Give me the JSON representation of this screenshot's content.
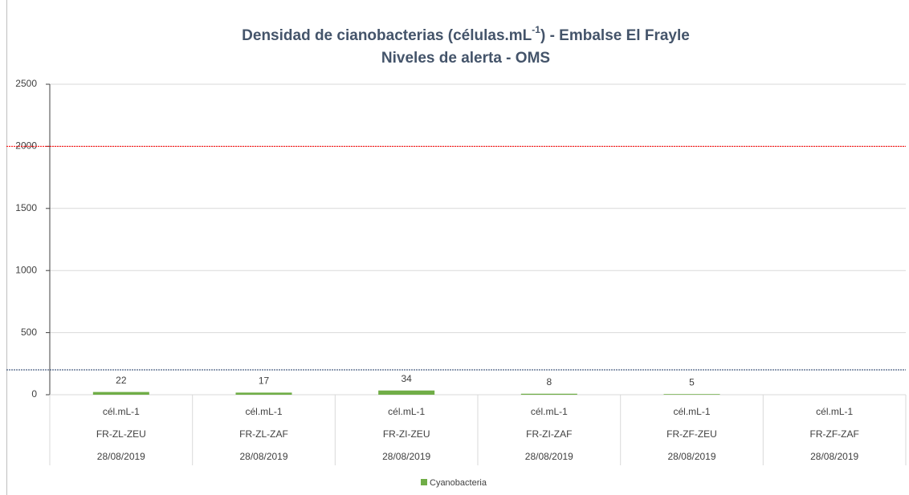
{
  "chart_data": {
    "type": "bar",
    "title": [
      "Densidad de cianobacterias (células.mL",
      "-1",
      ") - Embalse El Frayle"
    ],
    "subtitle": "Niveles de alerta - OMS",
    "categories": [
      [
        "cél.mL-1",
        "FR-ZL-ZEU",
        "28/08/2019"
      ],
      [
        "cél.mL-1",
        "FR-ZL-ZAF",
        "28/08/2019"
      ],
      [
        "cél.mL-1",
        "FR-ZI-ZEU",
        "28/08/2019"
      ],
      [
        "cél.mL-1",
        "FR-ZI-ZAF",
        "28/08/2019"
      ],
      [
        "cél.mL-1",
        "FR-ZF-ZEU",
        "28/08/2019"
      ],
      [
        "cél.mL-1",
        "FR-ZF-ZAF",
        "28/08/2019"
      ]
    ],
    "series": [
      {
        "name": "Cyanobacteria",
        "color": "#70ad47",
        "values": [
          22,
          17,
          34,
          8,
          5,
          null
        ]
      }
    ],
    "reference_lines": [
      {
        "value": 2000,
        "color": "#ff0000"
      },
      {
        "value": 200,
        "color": "#1f3864"
      }
    ],
    "ylim": [
      0,
      2500
    ],
    "yticks": [
      0,
      500,
      1000,
      1500,
      2000,
      2500
    ],
    "grid": true
  }
}
